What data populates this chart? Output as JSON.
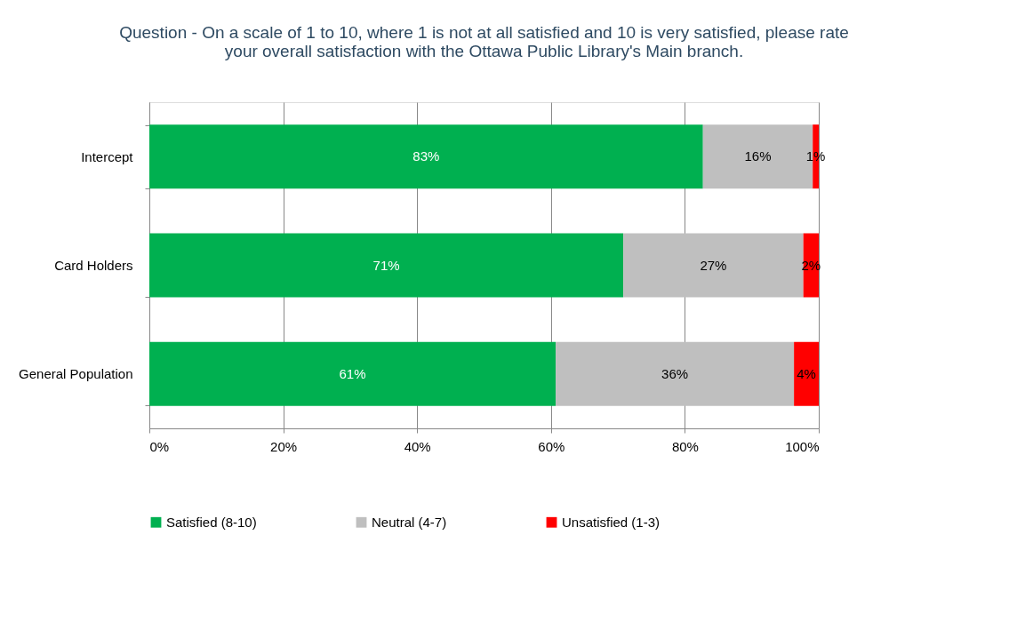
{
  "chart_data": {
    "type": "bar",
    "orientation": "horizontal",
    "stacked": true,
    "title": "Question - On a scale of 1 to 10, where 1 is not at all satisfied and 10 is very satisfied, please rate your overall satisfaction with the Ottawa Public Library's Main branch.",
    "categories": [
      "Intercept",
      "Card Holders",
      "General Population"
    ],
    "series": [
      {
        "name": "Satisfied (8-10)",
        "color": "#00b050",
        "values": [
          82.7,
          70.8,
          60.7
        ],
        "value_labels": [
          "83%",
          "71%",
          "61%"
        ]
      },
      {
        "name": "Neutral (4-7)",
        "color": "#bfbfbf",
        "values": [
          16.4,
          26.9,
          35.6
        ],
        "value_labels": [
          "16%",
          "27%",
          "36%"
        ]
      },
      {
        "name": "Unsatisfied (1-3)",
        "color": "#ff0000",
        "values": [
          0.9,
          2.3,
          3.7
        ],
        "value_labels": [
          "1%",
          "2%",
          "4%"
        ]
      }
    ],
    "xlim": [
      0,
      100
    ],
    "xticks": [
      {
        "value": 0,
        "label": "0%"
      },
      {
        "value": 20,
        "label": "20%"
      },
      {
        "value": 40,
        "label": "40%"
      },
      {
        "value": 60,
        "label": "60%"
      },
      {
        "value": 80,
        "label": "80%"
      },
      {
        "value": 100,
        "label": "100%"
      }
    ],
    "grid": "x",
    "legend": "bottom"
  }
}
